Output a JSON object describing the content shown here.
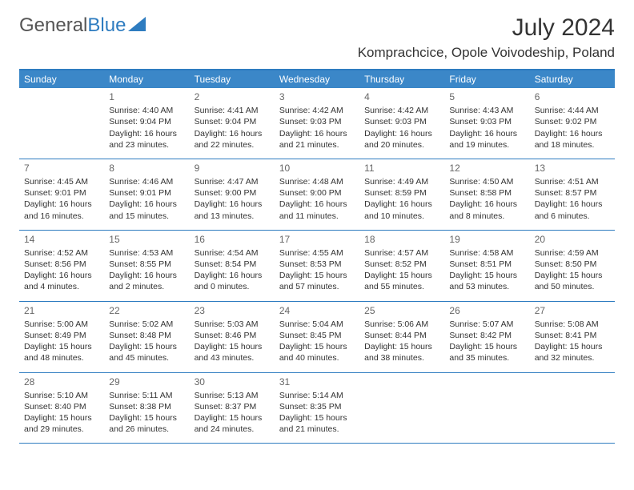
{
  "logo": {
    "text1": "General",
    "text2": "Blue"
  },
  "title": "July 2024",
  "location": "Komprachcice, Opole Voivodeship, Poland",
  "colors": {
    "header_bar": "#3b87c8",
    "border": "#2e7cc0",
    "text": "#333333",
    "muted": "#666666",
    "bg": "#ffffff"
  },
  "weekdays": [
    "Sunday",
    "Monday",
    "Tuesday",
    "Wednesday",
    "Thursday",
    "Friday",
    "Saturday"
  ],
  "weeks": [
    [
      {
        "n": "",
        "sr": "",
        "ss": "",
        "dl": ""
      },
      {
        "n": "1",
        "sr": "Sunrise: 4:40 AM",
        "ss": "Sunset: 9:04 PM",
        "dl": "Daylight: 16 hours and 23 minutes."
      },
      {
        "n": "2",
        "sr": "Sunrise: 4:41 AM",
        "ss": "Sunset: 9:04 PM",
        "dl": "Daylight: 16 hours and 22 minutes."
      },
      {
        "n": "3",
        "sr": "Sunrise: 4:42 AM",
        "ss": "Sunset: 9:03 PM",
        "dl": "Daylight: 16 hours and 21 minutes."
      },
      {
        "n": "4",
        "sr": "Sunrise: 4:42 AM",
        "ss": "Sunset: 9:03 PM",
        "dl": "Daylight: 16 hours and 20 minutes."
      },
      {
        "n": "5",
        "sr": "Sunrise: 4:43 AM",
        "ss": "Sunset: 9:03 PM",
        "dl": "Daylight: 16 hours and 19 minutes."
      },
      {
        "n": "6",
        "sr": "Sunrise: 4:44 AM",
        "ss": "Sunset: 9:02 PM",
        "dl": "Daylight: 16 hours and 18 minutes."
      }
    ],
    [
      {
        "n": "7",
        "sr": "Sunrise: 4:45 AM",
        "ss": "Sunset: 9:01 PM",
        "dl": "Daylight: 16 hours and 16 minutes."
      },
      {
        "n": "8",
        "sr": "Sunrise: 4:46 AM",
        "ss": "Sunset: 9:01 PM",
        "dl": "Daylight: 16 hours and 15 minutes."
      },
      {
        "n": "9",
        "sr": "Sunrise: 4:47 AM",
        "ss": "Sunset: 9:00 PM",
        "dl": "Daylight: 16 hours and 13 minutes."
      },
      {
        "n": "10",
        "sr": "Sunrise: 4:48 AM",
        "ss": "Sunset: 9:00 PM",
        "dl": "Daylight: 16 hours and 11 minutes."
      },
      {
        "n": "11",
        "sr": "Sunrise: 4:49 AM",
        "ss": "Sunset: 8:59 PM",
        "dl": "Daylight: 16 hours and 10 minutes."
      },
      {
        "n": "12",
        "sr": "Sunrise: 4:50 AM",
        "ss": "Sunset: 8:58 PM",
        "dl": "Daylight: 16 hours and 8 minutes."
      },
      {
        "n": "13",
        "sr": "Sunrise: 4:51 AM",
        "ss": "Sunset: 8:57 PM",
        "dl": "Daylight: 16 hours and 6 minutes."
      }
    ],
    [
      {
        "n": "14",
        "sr": "Sunrise: 4:52 AM",
        "ss": "Sunset: 8:56 PM",
        "dl": "Daylight: 16 hours and 4 minutes."
      },
      {
        "n": "15",
        "sr": "Sunrise: 4:53 AM",
        "ss": "Sunset: 8:55 PM",
        "dl": "Daylight: 16 hours and 2 minutes."
      },
      {
        "n": "16",
        "sr": "Sunrise: 4:54 AM",
        "ss": "Sunset: 8:54 PM",
        "dl": "Daylight: 16 hours and 0 minutes."
      },
      {
        "n": "17",
        "sr": "Sunrise: 4:55 AM",
        "ss": "Sunset: 8:53 PM",
        "dl": "Daylight: 15 hours and 57 minutes."
      },
      {
        "n": "18",
        "sr": "Sunrise: 4:57 AM",
        "ss": "Sunset: 8:52 PM",
        "dl": "Daylight: 15 hours and 55 minutes."
      },
      {
        "n": "19",
        "sr": "Sunrise: 4:58 AM",
        "ss": "Sunset: 8:51 PM",
        "dl": "Daylight: 15 hours and 53 minutes."
      },
      {
        "n": "20",
        "sr": "Sunrise: 4:59 AM",
        "ss": "Sunset: 8:50 PM",
        "dl": "Daylight: 15 hours and 50 minutes."
      }
    ],
    [
      {
        "n": "21",
        "sr": "Sunrise: 5:00 AM",
        "ss": "Sunset: 8:49 PM",
        "dl": "Daylight: 15 hours and 48 minutes."
      },
      {
        "n": "22",
        "sr": "Sunrise: 5:02 AM",
        "ss": "Sunset: 8:48 PM",
        "dl": "Daylight: 15 hours and 45 minutes."
      },
      {
        "n": "23",
        "sr": "Sunrise: 5:03 AM",
        "ss": "Sunset: 8:46 PM",
        "dl": "Daylight: 15 hours and 43 minutes."
      },
      {
        "n": "24",
        "sr": "Sunrise: 5:04 AM",
        "ss": "Sunset: 8:45 PM",
        "dl": "Daylight: 15 hours and 40 minutes."
      },
      {
        "n": "25",
        "sr": "Sunrise: 5:06 AM",
        "ss": "Sunset: 8:44 PM",
        "dl": "Daylight: 15 hours and 38 minutes."
      },
      {
        "n": "26",
        "sr": "Sunrise: 5:07 AM",
        "ss": "Sunset: 8:42 PM",
        "dl": "Daylight: 15 hours and 35 minutes."
      },
      {
        "n": "27",
        "sr": "Sunrise: 5:08 AM",
        "ss": "Sunset: 8:41 PM",
        "dl": "Daylight: 15 hours and 32 minutes."
      }
    ],
    [
      {
        "n": "28",
        "sr": "Sunrise: 5:10 AM",
        "ss": "Sunset: 8:40 PM",
        "dl": "Daylight: 15 hours and 29 minutes."
      },
      {
        "n": "29",
        "sr": "Sunrise: 5:11 AM",
        "ss": "Sunset: 8:38 PM",
        "dl": "Daylight: 15 hours and 26 minutes."
      },
      {
        "n": "30",
        "sr": "Sunrise: 5:13 AM",
        "ss": "Sunset: 8:37 PM",
        "dl": "Daylight: 15 hours and 24 minutes."
      },
      {
        "n": "31",
        "sr": "Sunrise: 5:14 AM",
        "ss": "Sunset: 8:35 PM",
        "dl": "Daylight: 15 hours and 21 minutes."
      },
      {
        "n": "",
        "sr": "",
        "ss": "",
        "dl": ""
      },
      {
        "n": "",
        "sr": "",
        "ss": "",
        "dl": ""
      },
      {
        "n": "",
        "sr": "",
        "ss": "",
        "dl": ""
      }
    ]
  ]
}
